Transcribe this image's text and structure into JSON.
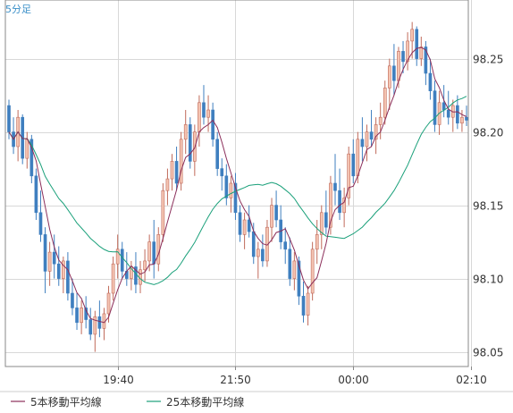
{
  "chart_data": {
    "type": "candlestick",
    "title": "5分足",
    "y_ticks": [
      "98.05",
      "98.10",
      "98.15",
      "98.20",
      "98.25"
    ],
    "ylim": [
      98.04,
      98.29
    ],
    "x_ticks": [
      {
        "label": "19:40",
        "index": 24
      },
      {
        "label": "21:50",
        "index": 50
      },
      {
        "label": "00:00",
        "index": 76
      },
      {
        "label": "02:10",
        "index": 102
      }
    ],
    "grid": true,
    "legend_position": "bottom-left",
    "colors": {
      "up": "#f4c4b2",
      "up_border": "#c06a5a",
      "down": "#3f7fbf",
      "ma5": "#8b2e5a",
      "ma25": "#1aa07a",
      "grid": "#d8d8d8",
      "axis": "#888888"
    },
    "series": [
      {
        "name": "5本移動平均線",
        "key": "ma5"
      },
      {
        "name": "25本移動平均線",
        "key": "ma25"
      }
    ],
    "ohlc": [
      [
        98.218,
        98.222,
        98.195,
        98.2
      ],
      [
        98.2,
        98.21,
        98.185,
        98.19
      ],
      [
        98.19,
        98.215,
        98.18,
        98.21
      ],
      [
        98.21,
        98.212,
        98.178,
        98.182
      ],
      [
        98.182,
        98.2,
        98.175,
        98.195
      ],
      [
        98.195,
        98.198,
        98.165,
        98.17
      ],
      [
        98.17,
        98.175,
        98.14,
        98.145
      ],
      [
        98.145,
        98.16,
        98.125,
        98.13
      ],
      [
        98.13,
        98.135,
        98.09,
        98.105
      ],
      [
        98.105,
        98.125,
        98.095,
        98.118
      ],
      [
        98.118,
        98.13,
        98.1,
        98.11
      ],
      [
        98.11,
        98.122,
        98.095,
        98.1
      ],
      [
        98.1,
        98.115,
        98.09,
        98.112
      ],
      [
        98.112,
        98.118,
        98.085,
        98.09
      ],
      [
        98.09,
        98.1,
        98.075,
        98.08
      ],
      [
        98.08,
        98.09,
        98.065,
        98.07
      ],
      [
        98.07,
        98.085,
        98.062,
        98.08
      ],
      [
        98.08,
        98.088,
        98.066,
        98.072
      ],
      [
        98.072,
        98.08,
        98.058,
        98.062
      ],
      [
        98.062,
        98.078,
        98.05,
        98.074
      ],
      [
        98.074,
        98.085,
        98.06,
        98.066
      ],
      [
        98.066,
        98.08,
        98.058,
        98.076
      ],
      [
        98.076,
        98.095,
        98.07,
        98.09
      ],
      [
        98.09,
        98.115,
        98.085,
        98.11
      ],
      [
        98.11,
        98.13,
        98.1,
        98.12
      ],
      [
        98.12,
        98.125,
        98.1,
        98.105
      ],
      [
        98.105,
        98.118,
        98.095,
        98.1
      ],
      [
        98.1,
        98.112,
        98.092,
        98.108
      ],
      [
        98.108,
        98.118,
        98.09,
        98.096
      ],
      [
        98.096,
        98.112,
        98.09,
        98.106
      ],
      [
        98.106,
        98.12,
        98.098,
        98.112
      ],
      [
        98.112,
        98.13,
        98.105,
        98.125
      ],
      [
        98.125,
        98.14,
        98.1,
        98.11
      ],
      [
        98.11,
        98.135,
        98.105,
        98.13
      ],
      [
        98.13,
        98.165,
        98.125,
        98.16
      ],
      [
        98.16,
        98.175,
        98.15,
        98.168
      ],
      [
        98.168,
        98.185,
        98.16,
        98.18
      ],
      [
        98.18,
        98.19,
        98.16,
        98.165
      ],
      [
        98.165,
        98.2,
        98.16,
        98.195
      ],
      [
        98.195,
        98.215,
        98.185,
        98.205
      ],
      [
        98.205,
        98.21,
        98.175,
        98.18
      ],
      [
        98.18,
        98.205,
        98.17,
        98.2
      ],
      [
        98.2,
        98.225,
        98.19,
        98.22
      ],
      [
        98.22,
        98.232,
        98.205,
        98.21
      ],
      [
        98.21,
        98.225,
        98.2,
        98.215
      ],
      [
        98.215,
        98.22,
        98.19,
        98.195
      ],
      [
        98.195,
        98.2,
        98.17,
        98.175
      ],
      [
        98.175,
        98.182,
        98.16,
        98.17
      ],
      [
        98.17,
        98.178,
        98.15,
        98.155
      ],
      [
        98.155,
        98.17,
        98.145,
        98.165
      ],
      [
        98.165,
        98.172,
        98.14,
        98.145
      ],
      [
        98.145,
        98.15,
        98.125,
        98.13
      ],
      [
        98.13,
        98.145,
        98.12,
        98.14
      ],
      [
        98.14,
        98.15,
        98.128,
        98.132
      ],
      [
        98.132,
        98.138,
        98.11,
        98.115
      ],
      [
        98.115,
        98.125,
        98.1,
        98.12
      ],
      [
        98.12,
        98.13,
        98.108,
        98.112
      ],
      [
        98.112,
        98.14,
        98.108,
        98.135
      ],
      [
        98.135,
        98.155,
        98.125,
        98.15
      ],
      [
        98.15,
        98.16,
        98.135,
        98.14
      ],
      [
        98.14,
        98.15,
        98.12,
        98.125
      ],
      [
        98.125,
        98.135,
        98.11,
        98.12
      ],
      [
        98.12,
        98.128,
        98.095,
        98.1
      ],
      [
        98.1,
        98.118,
        98.092,
        98.112
      ],
      [
        98.112,
        98.115,
        98.082,
        98.088
      ],
      [
        98.088,
        98.098,
        98.07,
        98.075
      ],
      [
        98.075,
        98.095,
        98.068,
        98.09
      ],
      [
        98.09,
        98.125,
        98.085,
        98.12
      ],
      [
        98.12,
        98.14,
        98.11,
        98.13
      ],
      [
        98.13,
        98.15,
        98.12,
        98.145
      ],
      [
        98.145,
        98.16,
        98.13,
        98.135
      ],
      [
        98.135,
        98.17,
        98.13,
        98.165
      ],
      [
        98.165,
        98.185,
        98.15,
        98.16
      ],
      [
        98.16,
        98.175,
        98.14,
        98.145
      ],
      [
        98.145,
        98.162,
        98.135,
        98.155
      ],
      [
        98.155,
        98.19,
        98.15,
        98.185
      ],
      [
        98.185,
        98.195,
        98.165,
        98.17
      ],
      [
        98.17,
        98.2,
        98.165,
        98.195
      ],
      [
        98.195,
        98.21,
        98.18,
        98.19
      ],
      [
        98.19,
        98.205,
        98.18,
        98.2
      ],
      [
        98.2,
        98.215,
        98.19,
        98.195
      ],
      [
        98.195,
        98.21,
        98.185,
        98.205
      ],
      [
        98.205,
        98.22,
        98.195,
        98.21
      ],
      [
        98.21,
        98.235,
        98.205,
        98.23
      ],
      [
        98.23,
        98.25,
        98.215,
        98.245
      ],
      [
        98.245,
        98.26,
        98.225,
        98.235
      ],
      [
        98.235,
        98.258,
        98.23,
        98.255
      ],
      [
        98.255,
        98.262,
        98.24,
        98.248
      ],
      [
        98.248,
        98.268,
        98.242,
        98.262
      ],
      [
        98.262,
        98.275,
        98.25,
        98.27
      ],
      [
        98.27,
        98.272,
        98.245,
        98.25
      ],
      [
        98.25,
        98.265,
        98.245,
        98.258
      ],
      [
        98.258,
        98.262,
        98.232,
        98.24
      ],
      [
        98.24,
        98.25,
        98.222,
        98.228
      ],
      [
        98.228,
        98.235,
        98.2,
        98.205
      ],
      [
        98.205,
        98.228,
        98.198,
        98.22
      ],
      [
        98.22,
        98.232,
        98.21,
        98.215
      ],
      [
        98.215,
        98.228,
        98.205,
        98.21
      ],
      [
        98.21,
        98.222,
        98.2,
        98.218
      ],
      [
        98.218,
        98.225,
        98.202,
        98.206
      ],
      [
        98.206,
        98.215,
        98.2,
        98.21
      ],
      [
        98.21,
        98.218,
        98.204,
        98.208
      ]
    ]
  }
}
